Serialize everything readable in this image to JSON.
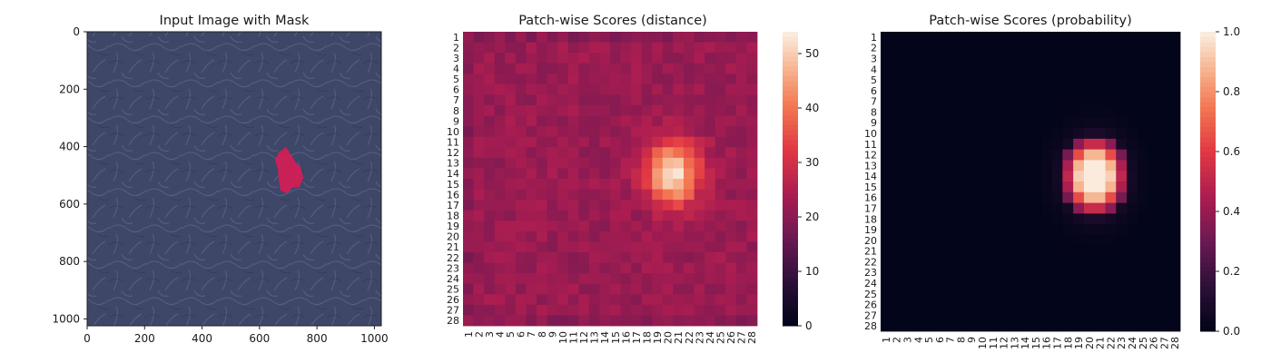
{
  "chart_data": [
    {
      "type": "image",
      "title": "Input Image with Mask",
      "x_ticks": [
        "0",
        "200",
        "400",
        "600",
        "800",
        "1000"
      ],
      "y_ticks": [
        "0",
        "200",
        "400",
        "600",
        "800",
        "1000"
      ],
      "xlim": [
        0,
        1024
      ],
      "ylim": [
        1024,
        0
      ],
      "image_description_colors": {
        "background": "#3f4868",
        "mask": "#dd1b56"
      },
      "mask_region": {
        "x_range": [
          650,
          735
        ],
        "y_range": [
          400,
          560
        ]
      }
    },
    {
      "type": "heatmap",
      "title": "Patch-wise Scores (distance)",
      "rows": [
        "1",
        "2",
        "3",
        "4",
        "5",
        "6",
        "7",
        "8",
        "9",
        "10",
        "11",
        "12",
        "13",
        "14",
        "15",
        "16",
        "17",
        "18",
        "19",
        "20",
        "21",
        "22",
        "23",
        "24",
        "25",
        "26",
        "27",
        "28"
      ],
      "cols": [
        "1",
        "2",
        "3",
        "4",
        "5",
        "6",
        "7",
        "8",
        "9",
        "10",
        "11",
        "12",
        "13",
        "14",
        "15",
        "16",
        "17",
        "18",
        "19",
        "20",
        "21",
        "22",
        "23",
        "24",
        "25",
        "26",
        "27",
        "28"
      ],
      "colorbar": {
        "min": 0,
        "max": 54,
        "ticks": [
          "0",
          "10",
          "20",
          "30",
          "40",
          "50"
        ]
      },
      "baseline": 22,
      "hotspot": {
        "center_row": 14,
        "center_col": 20.5,
        "peak": 54
      },
      "colormap": "rocket"
    },
    {
      "type": "heatmap",
      "title": "Patch-wise Scores (probability)",
      "rows": [
        "1",
        "2",
        "3",
        "4",
        "5",
        "6",
        "7",
        "8",
        "9",
        "10",
        "11",
        "12",
        "13",
        "14",
        "15",
        "16",
        "17",
        "18",
        "19",
        "20",
        "21",
        "22",
        "23",
        "24",
        "25",
        "26",
        "27",
        "28"
      ],
      "cols": [
        "1",
        "2",
        "3",
        "4",
        "5",
        "6",
        "7",
        "8",
        "9",
        "10",
        "11",
        "12",
        "13",
        "14",
        "15",
        "16",
        "17",
        "18",
        "19",
        "20",
        "21",
        "22",
        "23",
        "24",
        "25",
        "26",
        "27",
        "28"
      ],
      "colorbar": {
        "min": 0.0,
        "max": 1.0,
        "ticks": [
          "0.0",
          "0.2",
          "0.4",
          "0.6",
          "0.8",
          "1.0"
        ]
      },
      "baseline": 0.0,
      "hotspot": {
        "center_row": 14,
        "center_col": 20.5,
        "peak": 1.0
      },
      "colormap": "rocket"
    }
  ]
}
